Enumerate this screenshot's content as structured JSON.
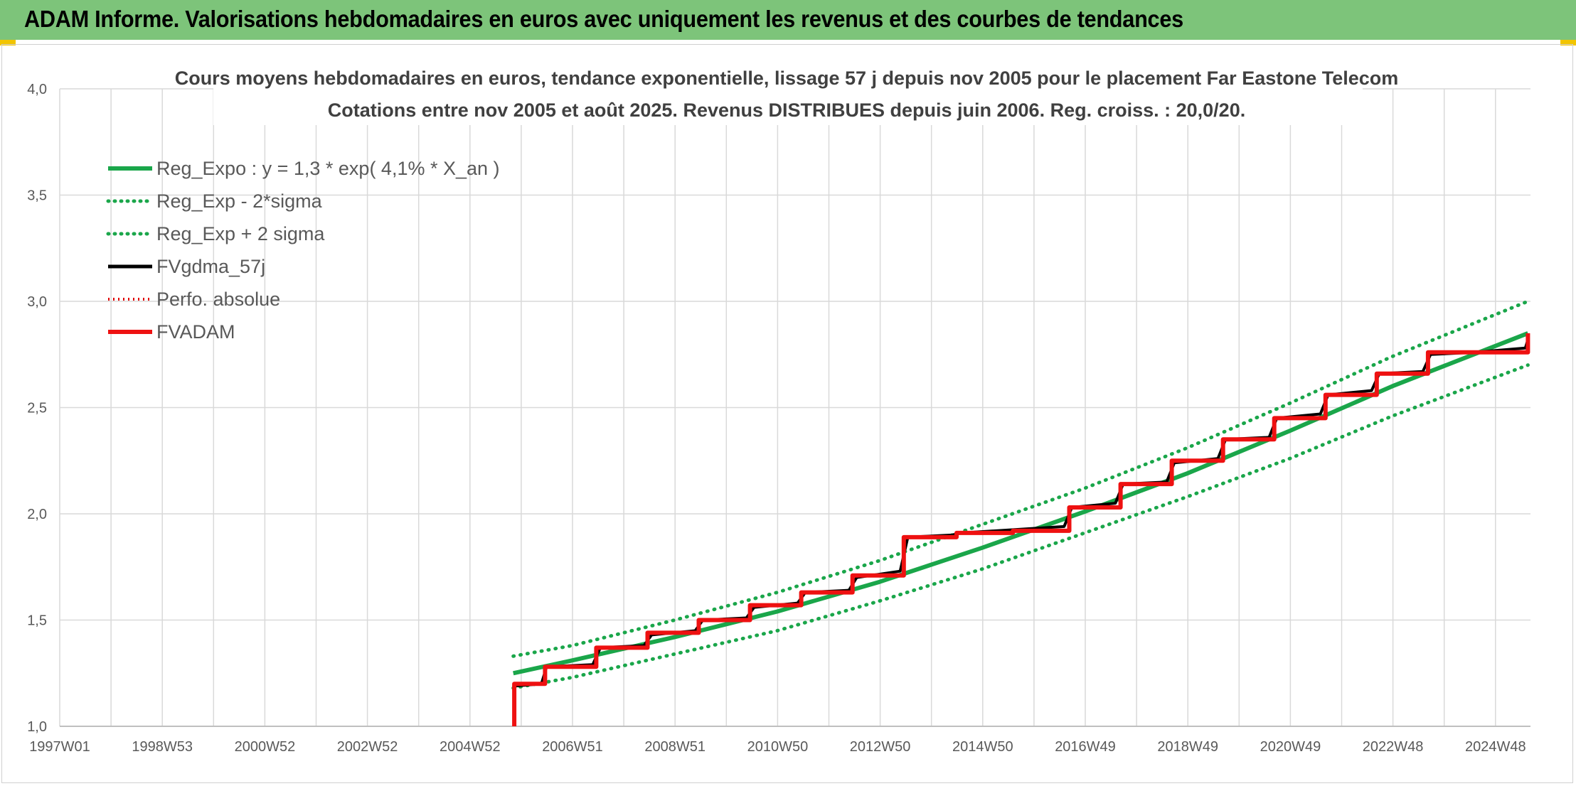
{
  "header": {
    "title": "ADAM Informe. Valorisations hebdomadaires en euros avec uniquement les revenus et des courbes de tendances"
  },
  "colors": {
    "banner": "#7dc47a",
    "reg_expo": "#1aa64a",
    "sigma": "#1aa64a",
    "fvgdma": "#000000",
    "perfo": "#e00000",
    "fvadam": "#ee1111"
  },
  "chart_data": {
    "type": "line",
    "title": "Cours moyens hebdomadaires en euros, tendance exponentielle, lissage 57 j depuis nov 2005 pour le placement Far Eastone Telecom",
    "subtitle": "Cotations entre nov 2005 et août 2025. Revenus DISTRIBUES depuis juin 2006. Reg. croiss. : 20,0/20.",
    "ylim": [
      1.0,
      4.0
    ],
    "xlim": [
      1997.0,
      2025.7
    ],
    "yticks": [
      "1,0",
      "1,5",
      "2,0",
      "2,5",
      "3,0",
      "3,5",
      "4,0"
    ],
    "xticks": [
      "1997W01",
      "1998W53",
      "2000W52",
      "2002W52",
      "2004W52",
      "2006W51",
      "2008W51",
      "2010W50",
      "2012W50",
      "2014W50",
      "2016W49",
      "2018W49",
      "2020W49",
      "2022W48",
      "2024W48"
    ],
    "grid": true,
    "legend_position": "top-left",
    "series": [
      {
        "name": "Reg_Expo : y = 1,3 * exp( 4,1% *  X_an )",
        "style": "solid",
        "points": [
          [
            2005.85,
            1.25
          ],
          [
            2007.0,
            1.31
          ],
          [
            2009.0,
            1.42
          ],
          [
            2011.0,
            1.54
          ],
          [
            2013.0,
            1.68
          ],
          [
            2015.0,
            1.84
          ],
          [
            2017.0,
            2.01
          ],
          [
            2019.0,
            2.19
          ],
          [
            2021.0,
            2.39
          ],
          [
            2023.0,
            2.6
          ],
          [
            2025.65,
            2.85
          ]
        ]
      },
      {
        "name": "Reg_Exp - 2*sigma",
        "style": "dotted",
        "points": [
          [
            2005.85,
            1.18
          ],
          [
            2007.0,
            1.23
          ],
          [
            2009.0,
            1.34
          ],
          [
            2011.0,
            1.45
          ],
          [
            2013.0,
            1.59
          ],
          [
            2015.0,
            1.74
          ],
          [
            2017.0,
            1.91
          ],
          [
            2019.0,
            2.08
          ],
          [
            2021.0,
            2.26
          ],
          [
            2023.0,
            2.46
          ],
          [
            2025.65,
            2.7
          ]
        ]
      },
      {
        "name": "Reg_Exp + 2 sigma",
        "style": "dotted",
        "points": [
          [
            2005.85,
            1.33
          ],
          [
            2007.0,
            1.38
          ],
          [
            2009.0,
            1.5
          ],
          [
            2011.0,
            1.63
          ],
          [
            2013.0,
            1.78
          ],
          [
            2015.0,
            1.95
          ],
          [
            2017.0,
            2.12
          ],
          [
            2019.0,
            2.31
          ],
          [
            2021.0,
            2.52
          ],
          [
            2023.0,
            2.74
          ],
          [
            2025.65,
            3.0
          ]
        ]
      },
      {
        "name": "FVgdma_57j",
        "style": "solid",
        "points": [
          [
            2005.9,
            1.19
          ],
          [
            2006.4,
            1.2
          ],
          [
            2006.5,
            1.28
          ],
          [
            2007.4,
            1.29
          ],
          [
            2007.55,
            1.37
          ],
          [
            2008.4,
            1.38
          ],
          [
            2008.55,
            1.43
          ],
          [
            2009.4,
            1.45
          ],
          [
            2009.55,
            1.5
          ],
          [
            2010.4,
            1.51
          ],
          [
            2010.55,
            1.56
          ],
          [
            2011.4,
            1.58
          ],
          [
            2011.55,
            1.63
          ],
          [
            2012.4,
            1.64
          ],
          [
            2012.55,
            1.7
          ],
          [
            2013.4,
            1.73
          ],
          [
            2013.55,
            1.89
          ],
          [
            2014.4,
            1.9
          ],
          [
            2014.6,
            1.91
          ],
          [
            2016.6,
            1.94
          ],
          [
            2016.75,
            2.03
          ],
          [
            2017.6,
            2.05
          ],
          [
            2017.75,
            2.14
          ],
          [
            2018.6,
            2.15
          ],
          [
            2018.75,
            2.24
          ],
          [
            2019.6,
            2.26
          ],
          [
            2019.75,
            2.35
          ],
          [
            2020.6,
            2.36
          ],
          [
            2020.75,
            2.45
          ],
          [
            2021.6,
            2.47
          ],
          [
            2021.75,
            2.56
          ],
          [
            2022.6,
            2.58
          ],
          [
            2022.75,
            2.66
          ],
          [
            2023.6,
            2.67
          ],
          [
            2023.75,
            2.75
          ],
          [
            2024.6,
            2.76
          ],
          [
            2025.6,
            2.78
          ],
          [
            2025.65,
            2.82
          ]
        ]
      },
      {
        "name": "Perfo. absolue",
        "style": "dotted",
        "points": []
      },
      {
        "name": "FVADAM",
        "style": "solid",
        "points": [
          [
            2005.87,
            1.0
          ],
          [
            2005.87,
            1.2
          ],
          [
            2006.47,
            1.2
          ],
          [
            2006.47,
            1.28
          ],
          [
            2007.47,
            1.28
          ],
          [
            2007.47,
            1.37
          ],
          [
            2008.47,
            1.37
          ],
          [
            2008.47,
            1.44
          ],
          [
            2009.47,
            1.44
          ],
          [
            2009.47,
            1.5
          ],
          [
            2010.47,
            1.5
          ],
          [
            2010.47,
            1.57
          ],
          [
            2011.47,
            1.57
          ],
          [
            2011.47,
            1.63
          ],
          [
            2012.47,
            1.63
          ],
          [
            2012.47,
            1.71
          ],
          [
            2013.47,
            1.71
          ],
          [
            2013.47,
            1.89
          ],
          [
            2014.5,
            1.89
          ],
          [
            2014.5,
            1.91
          ],
          [
            2015.6,
            1.91
          ],
          [
            2015.6,
            1.92
          ],
          [
            2016.7,
            1.92
          ],
          [
            2016.7,
            1.95
          ],
          [
            2016.7,
            2.03
          ],
          [
            2017.7,
            2.03
          ],
          [
            2017.7,
            2.14
          ],
          [
            2018.7,
            2.14
          ],
          [
            2018.7,
            2.25
          ],
          [
            2019.7,
            2.25
          ],
          [
            2019.7,
            2.35
          ],
          [
            2020.7,
            2.35
          ],
          [
            2020.7,
            2.45
          ],
          [
            2021.7,
            2.45
          ],
          [
            2021.7,
            2.56
          ],
          [
            2022.7,
            2.56
          ],
          [
            2022.7,
            2.66
          ],
          [
            2023.7,
            2.66
          ],
          [
            2023.7,
            2.76
          ],
          [
            2025.65,
            2.76
          ],
          [
            2025.65,
            2.85
          ]
        ]
      }
    ]
  }
}
